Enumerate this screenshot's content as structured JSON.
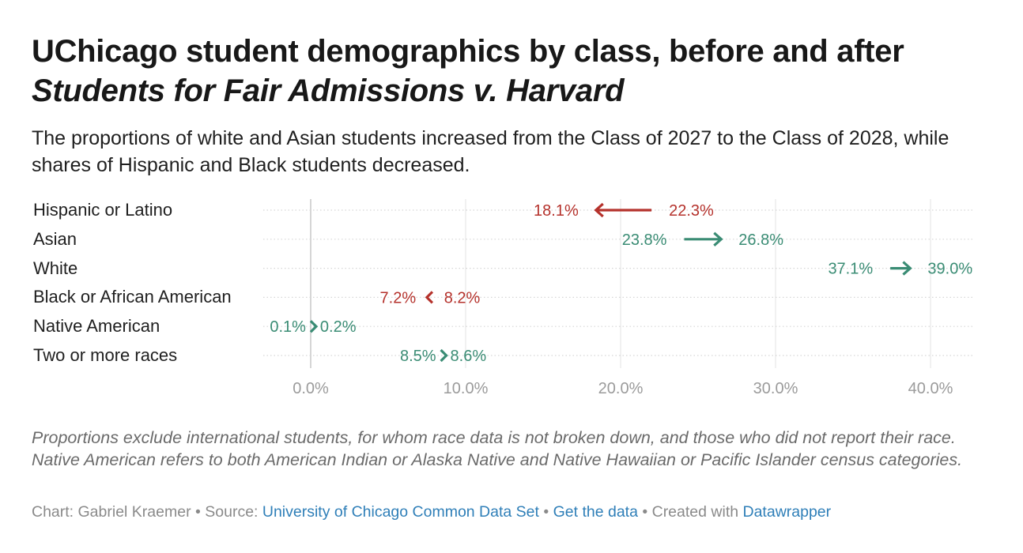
{
  "title_part1": "UChicago student demographics by class, before and after",
  "title_part2": "Students for Fair Admissions v. Harvard",
  "subtitle": "The proportions of white and Asian students increased from the Class of 2027 to the Class of 2028, while shares of Hispanic and Black students decreased.",
  "chart_data": {
    "type": "arrow_plot",
    "xlim": [
      0,
      42.5
    ],
    "x_ticks": [
      0,
      10,
      20,
      30,
      40
    ],
    "x_tick_labels": [
      "0.0%",
      "10.0%",
      "20.0%",
      "30.0%",
      "40.0%"
    ],
    "series_names": [
      "Class of 2027",
      "Class of 2028"
    ],
    "rows": [
      {
        "label": "Hispanic or Latino",
        "from": 22.3,
        "to": 18.1,
        "from_label": "22.3%",
        "to_label": "18.1%"
      },
      {
        "label": "Asian",
        "from": 23.8,
        "to": 26.8,
        "from_label": "23.8%",
        "to_label": "26.8%"
      },
      {
        "label": "White",
        "from": 37.1,
        "to": 39.0,
        "from_label": "37.1%",
        "to_label": "39.0%"
      },
      {
        "label": "Black or African American",
        "from": 8.2,
        "to": 7.2,
        "from_label": "8.2%",
        "to_label": "7.2%"
      },
      {
        "label": "Native American",
        "from": 0.1,
        "to": 0.2,
        "from_label": "0.1%",
        "to_label": "0.2%"
      },
      {
        "label": "Two or more races",
        "from": 8.5,
        "to": 8.6,
        "from_label": "8.5%",
        "to_label": "8.6%"
      }
    ],
    "colors": {
      "increase": "#3a8c74",
      "decrease": "#b5322c",
      "grid": "#e3e3e3",
      "axis": "#c8c8c8",
      "tick_text": "#9b9b9b"
    }
  },
  "notes": "Proportions exclude international students, for whom race data is not broken down, and those who did not report their race. Native American refers to both American Indian or Alaska Native and Native Hawaiian or Pacific Islander census categories.",
  "credits": {
    "chart_by": "Chart: Gabriel Kraemer",
    "sep1": " • ",
    "source_prefix": "Source: ",
    "source_link": "University of Chicago Common Data Set",
    "sep2": " • ",
    "get_data": "Get the data",
    "sep3": " • ",
    "created_prefix": "Created with ",
    "created_link": "Datawrapper"
  }
}
